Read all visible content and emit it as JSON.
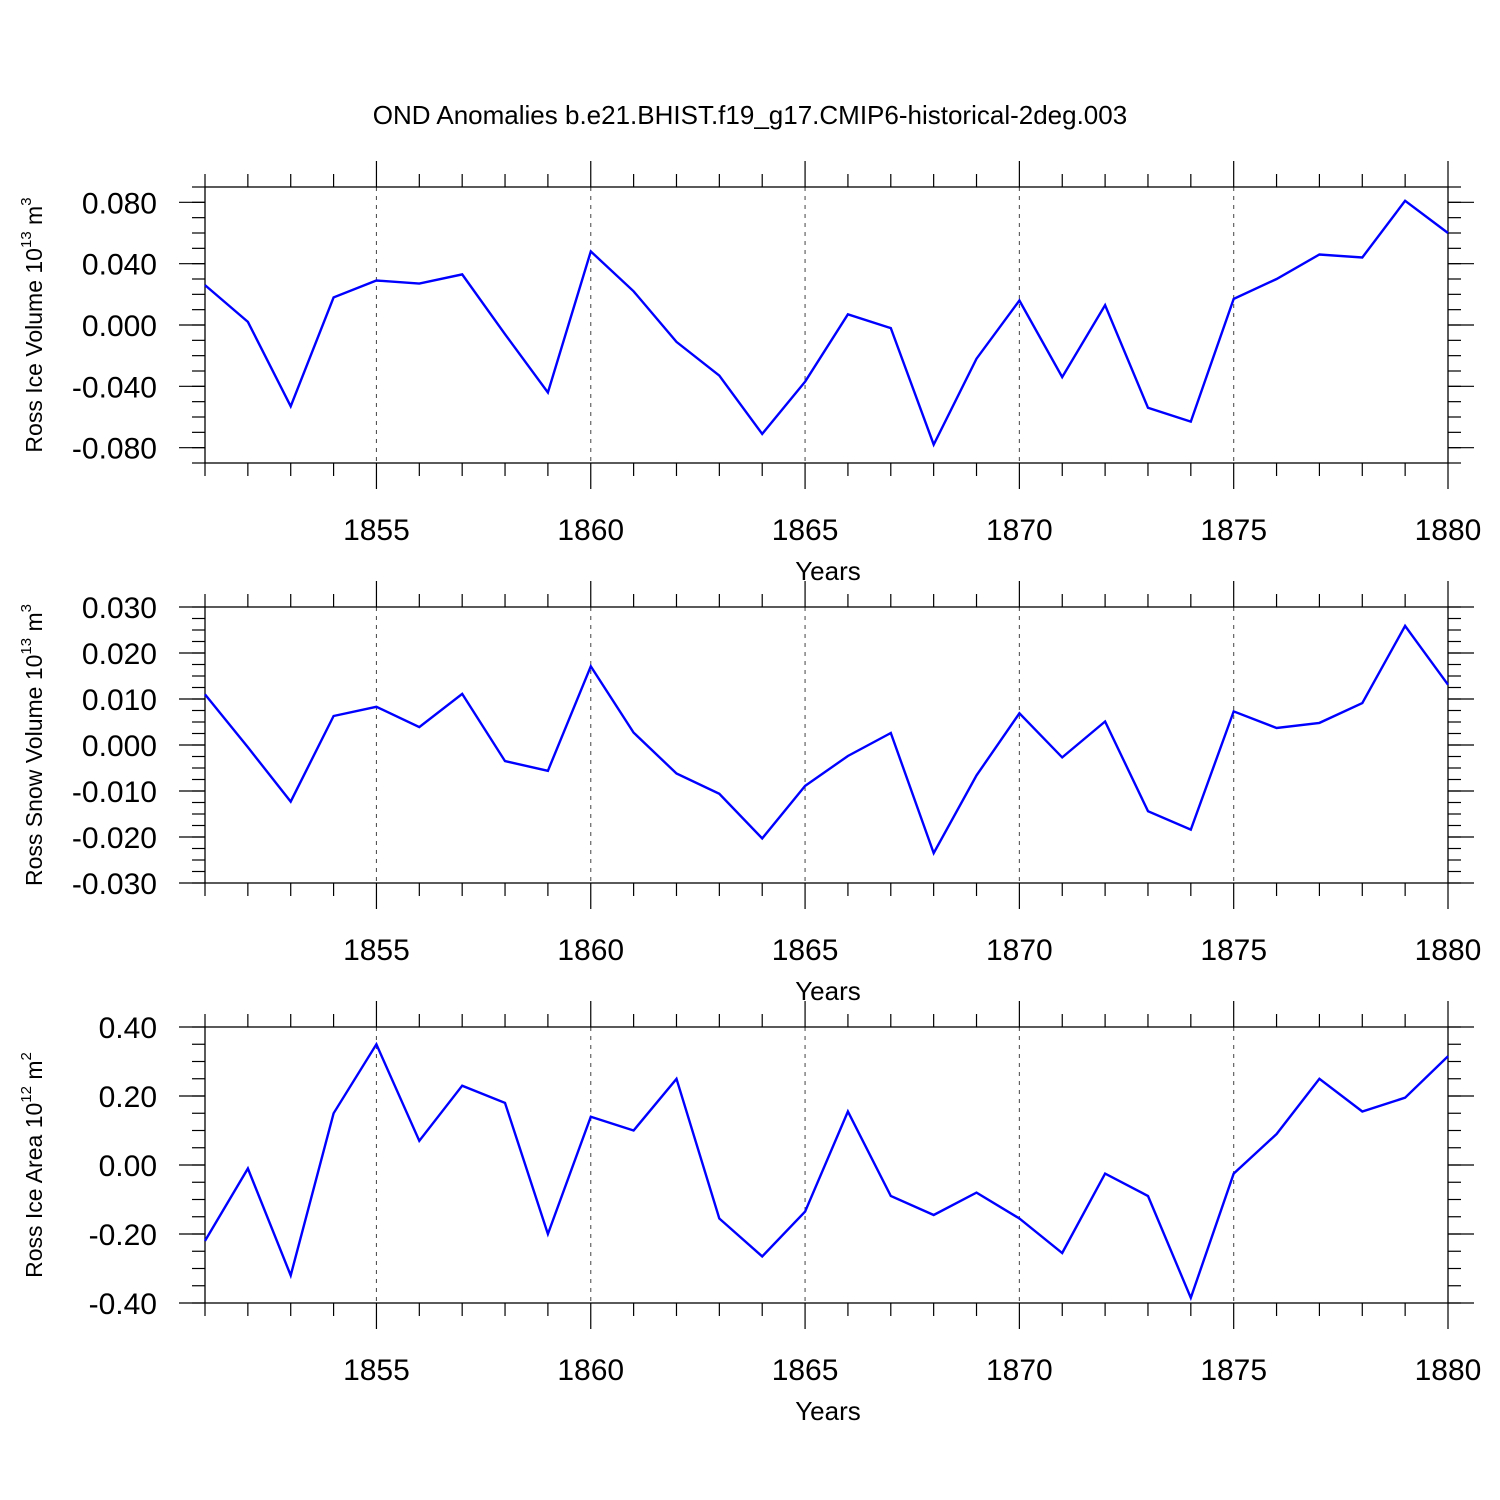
{
  "title": "OND Anomalies b.e21.BHIST.f19_g17.CMIP6-historical-2deg.003",
  "colors": {
    "line": "#0000ff",
    "axes": "#000000",
    "grid": "#555555"
  },
  "chart_data": [
    {
      "type": "line",
      "name": "Ross Ice Volume",
      "ylabel": {
        "main": "Ross Ice Volume 10",
        "exp": "13",
        "unit": " m",
        "unit_exp": "3"
      },
      "xlabel": "Years",
      "xlim": [
        1851,
        1880
      ],
      "ylim": [
        -0.09,
        0.09
      ],
      "grid_x_dashed": [
        1855,
        1860,
        1865,
        1870,
        1875
      ],
      "xticks": [
        "1855",
        "1860",
        "1865",
        "1870",
        "1875",
        "1880"
      ],
      "yticks": [
        0.08,
        0.04,
        0.0,
        -0.04,
        -0.08
      ],
      "ytick_labels": [
        "0.080",
        "0.040",
        "0.000",
        "-0.040",
        "-0.080"
      ],
      "y_minor_step": 0.01,
      "x": [
        1851,
        1852,
        1853,
        1854,
        1855,
        1856,
        1857,
        1858,
        1859,
        1860,
        1861,
        1862,
        1863,
        1864,
        1865,
        1866,
        1867,
        1868,
        1869,
        1870,
        1871,
        1872,
        1873,
        1874,
        1875,
        1876,
        1877,
        1878,
        1879,
        1880
      ],
      "y": [
        0.026,
        0.002,
        -0.053,
        0.018,
        0.029,
        0.027,
        0.033,
        -0.006,
        -0.044,
        0.048,
        0.022,
        -0.011,
        -0.033,
        -0.071,
        -0.037,
        0.007,
        -0.002,
        -0.078,
        -0.022,
        0.016,
        -0.034,
        0.013,
        -0.054,
        -0.063,
        0.017,
        0.03,
        0.046,
        0.044,
        0.081,
        0.06
      ]
    },
    {
      "type": "line",
      "name": "Ross Snow Volume",
      "ylabel": {
        "main": "Ross Snow Volume 10",
        "exp": "13",
        "unit": " m",
        "unit_exp": "3"
      },
      "xlabel": "Years",
      "xlim": [
        1851,
        1880
      ],
      "ylim": [
        -0.03,
        0.03
      ],
      "grid_x_dashed": [
        1855,
        1860,
        1865,
        1870,
        1875
      ],
      "xticks": [
        "1855",
        "1860",
        "1865",
        "1870",
        "1875",
        "1880"
      ],
      "yticks": [
        0.03,
        0.02,
        0.01,
        0.0,
        -0.01,
        -0.02,
        -0.03
      ],
      "ytick_labels": [
        "0.030",
        "0.020",
        "0.010",
        "0.000",
        "-0.010",
        "-0.020",
        "-0.030"
      ],
      "y_minor_step": 0.0025,
      "x": [
        1851,
        1852,
        1853,
        1854,
        1855,
        1856,
        1857,
        1858,
        1859,
        1860,
        1861,
        1862,
        1863,
        1864,
        1865,
        1866,
        1867,
        1868,
        1869,
        1870,
        1871,
        1872,
        1873,
        1874,
        1875,
        1876,
        1877,
        1878,
        1879,
        1880
      ],
      "y": [
        0.011,
        -0.0005,
        -0.0123,
        0.0063,
        0.0083,
        0.0039,
        0.0111,
        -0.0035,
        -0.0056,
        0.0171,
        0.0027,
        -0.0062,
        -0.0106,
        -0.0203,
        -0.0089,
        -0.0024,
        0.0026,
        -0.0235,
        -0.0066,
        0.0069,
        -0.0027,
        0.0051,
        -0.0144,
        -0.0184,
        0.0073,
        0.0037,
        0.0048,
        0.0091,
        0.0259,
        0.0131
      ]
    },
    {
      "type": "line",
      "name": "Ross Ice Area",
      "ylabel": {
        "main": "Ross Ice Area 10",
        "exp": "12",
        "unit": " m",
        "unit_exp": "2"
      },
      "xlabel": "Years",
      "xlim": [
        1851,
        1880
      ],
      "ylim": [
        -0.4,
        0.4
      ],
      "grid_x_dashed": [
        1855,
        1860,
        1865,
        1870,
        1875
      ],
      "xticks": [
        "1855",
        "1860",
        "1865",
        "1870",
        "1875",
        "1880"
      ],
      "yticks": [
        0.4,
        0.2,
        0.0,
        -0.2,
        -0.4
      ],
      "ytick_labels": [
        "0.40",
        "0.20",
        "0.00",
        "-0.20",
        "-0.40"
      ],
      "y_minor_step": 0.05,
      "x": [
        1851,
        1852,
        1853,
        1854,
        1855,
        1856,
        1857,
        1858,
        1859,
        1860,
        1861,
        1862,
        1863,
        1864,
        1865,
        1866,
        1867,
        1868,
        1869,
        1870,
        1871,
        1872,
        1873,
        1874,
        1875,
        1876,
        1877,
        1878,
        1879,
        1880
      ],
      "y": [
        -0.22,
        -0.01,
        -0.32,
        0.15,
        0.35,
        0.07,
        0.23,
        0.18,
        -0.2,
        0.14,
        0.1,
        0.25,
        -0.155,
        -0.265,
        -0.135,
        0.155,
        -0.09,
        -0.145,
        -0.08,
        -0.155,
        -0.255,
        -0.025,
        -0.09,
        -0.385,
        -0.025,
        0.09,
        0.25,
        0.155,
        0.195,
        0.315
      ]
    }
  ]
}
